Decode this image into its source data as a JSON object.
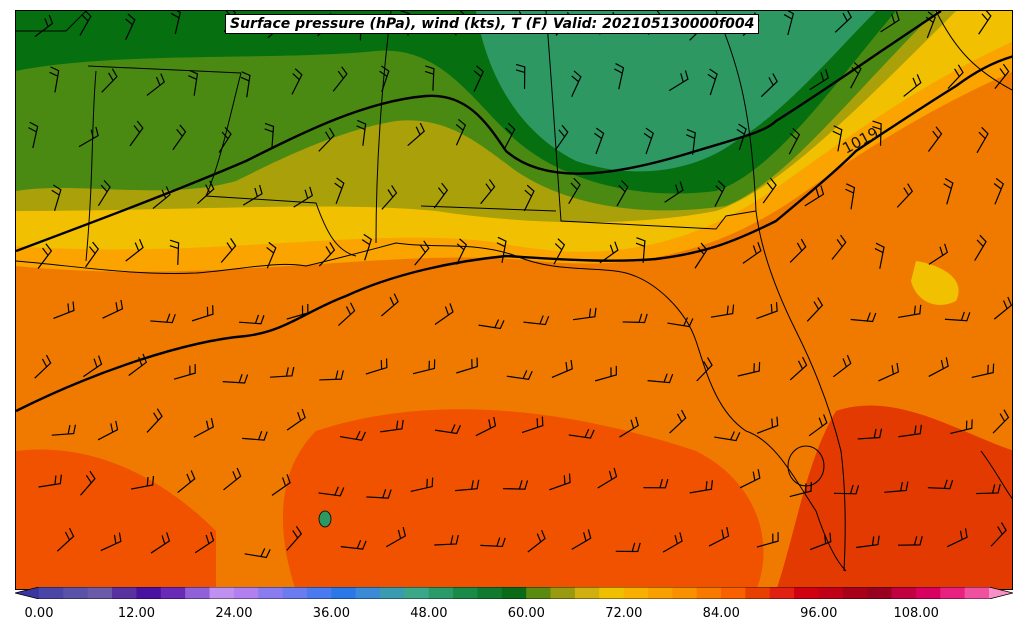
{
  "title": "Surface pressure (hPa), wind (kts), T (F) Valid: 202105130000f004",
  "isobar_label": "1019",
  "colorbar": {
    "tick_labels": [
      "0.00",
      "12.00",
      "24.00",
      "36.00",
      "48.00",
      "60.00",
      "72.00",
      "84.00",
      "96.00",
      "108.00"
    ],
    "colors": [
      "#3a36a0",
      "#4a46a8",
      "#5a52a8",
      "#6a5aa8",
      "#5830a0",
      "#4a12a0",
      "#6a2ab8",
      "#9060d8",
      "#c090f0",
      "#b080f0",
      "#8a7cf0",
      "#6a7cf0",
      "#4a7af0",
      "#2a78e8",
      "#3a8ad8",
      "#3a9ab0",
      "#3aa888",
      "#2a9a68",
      "#1a8a48",
      "#107a30",
      "#0a6a18",
      "#5a8a10",
      "#9a9a10",
      "#d0b010",
      "#f0c000",
      "#f8b000",
      "#f8a000",
      "#f89000",
      "#f87800",
      "#f86000",
      "#e84000",
      "#e02010",
      "#d00010",
      "#c00018",
      "#a80018",
      "#980020",
      "#c00040",
      "#d80060",
      "#e82080",
      "#f050a0",
      "#f890c8"
    ],
    "vmin": 0,
    "vmax": 120
  },
  "colors": {
    "warm_orange": "#f07a00",
    "deep_orange": "#f05200",
    "amber": "#fba400",
    "gold": "#f1c000",
    "olive": "#a9a00a",
    "grass_green": "#4a8a12",
    "forest_green": "#067010",
    "teal_green": "#2e9862"
  }
}
